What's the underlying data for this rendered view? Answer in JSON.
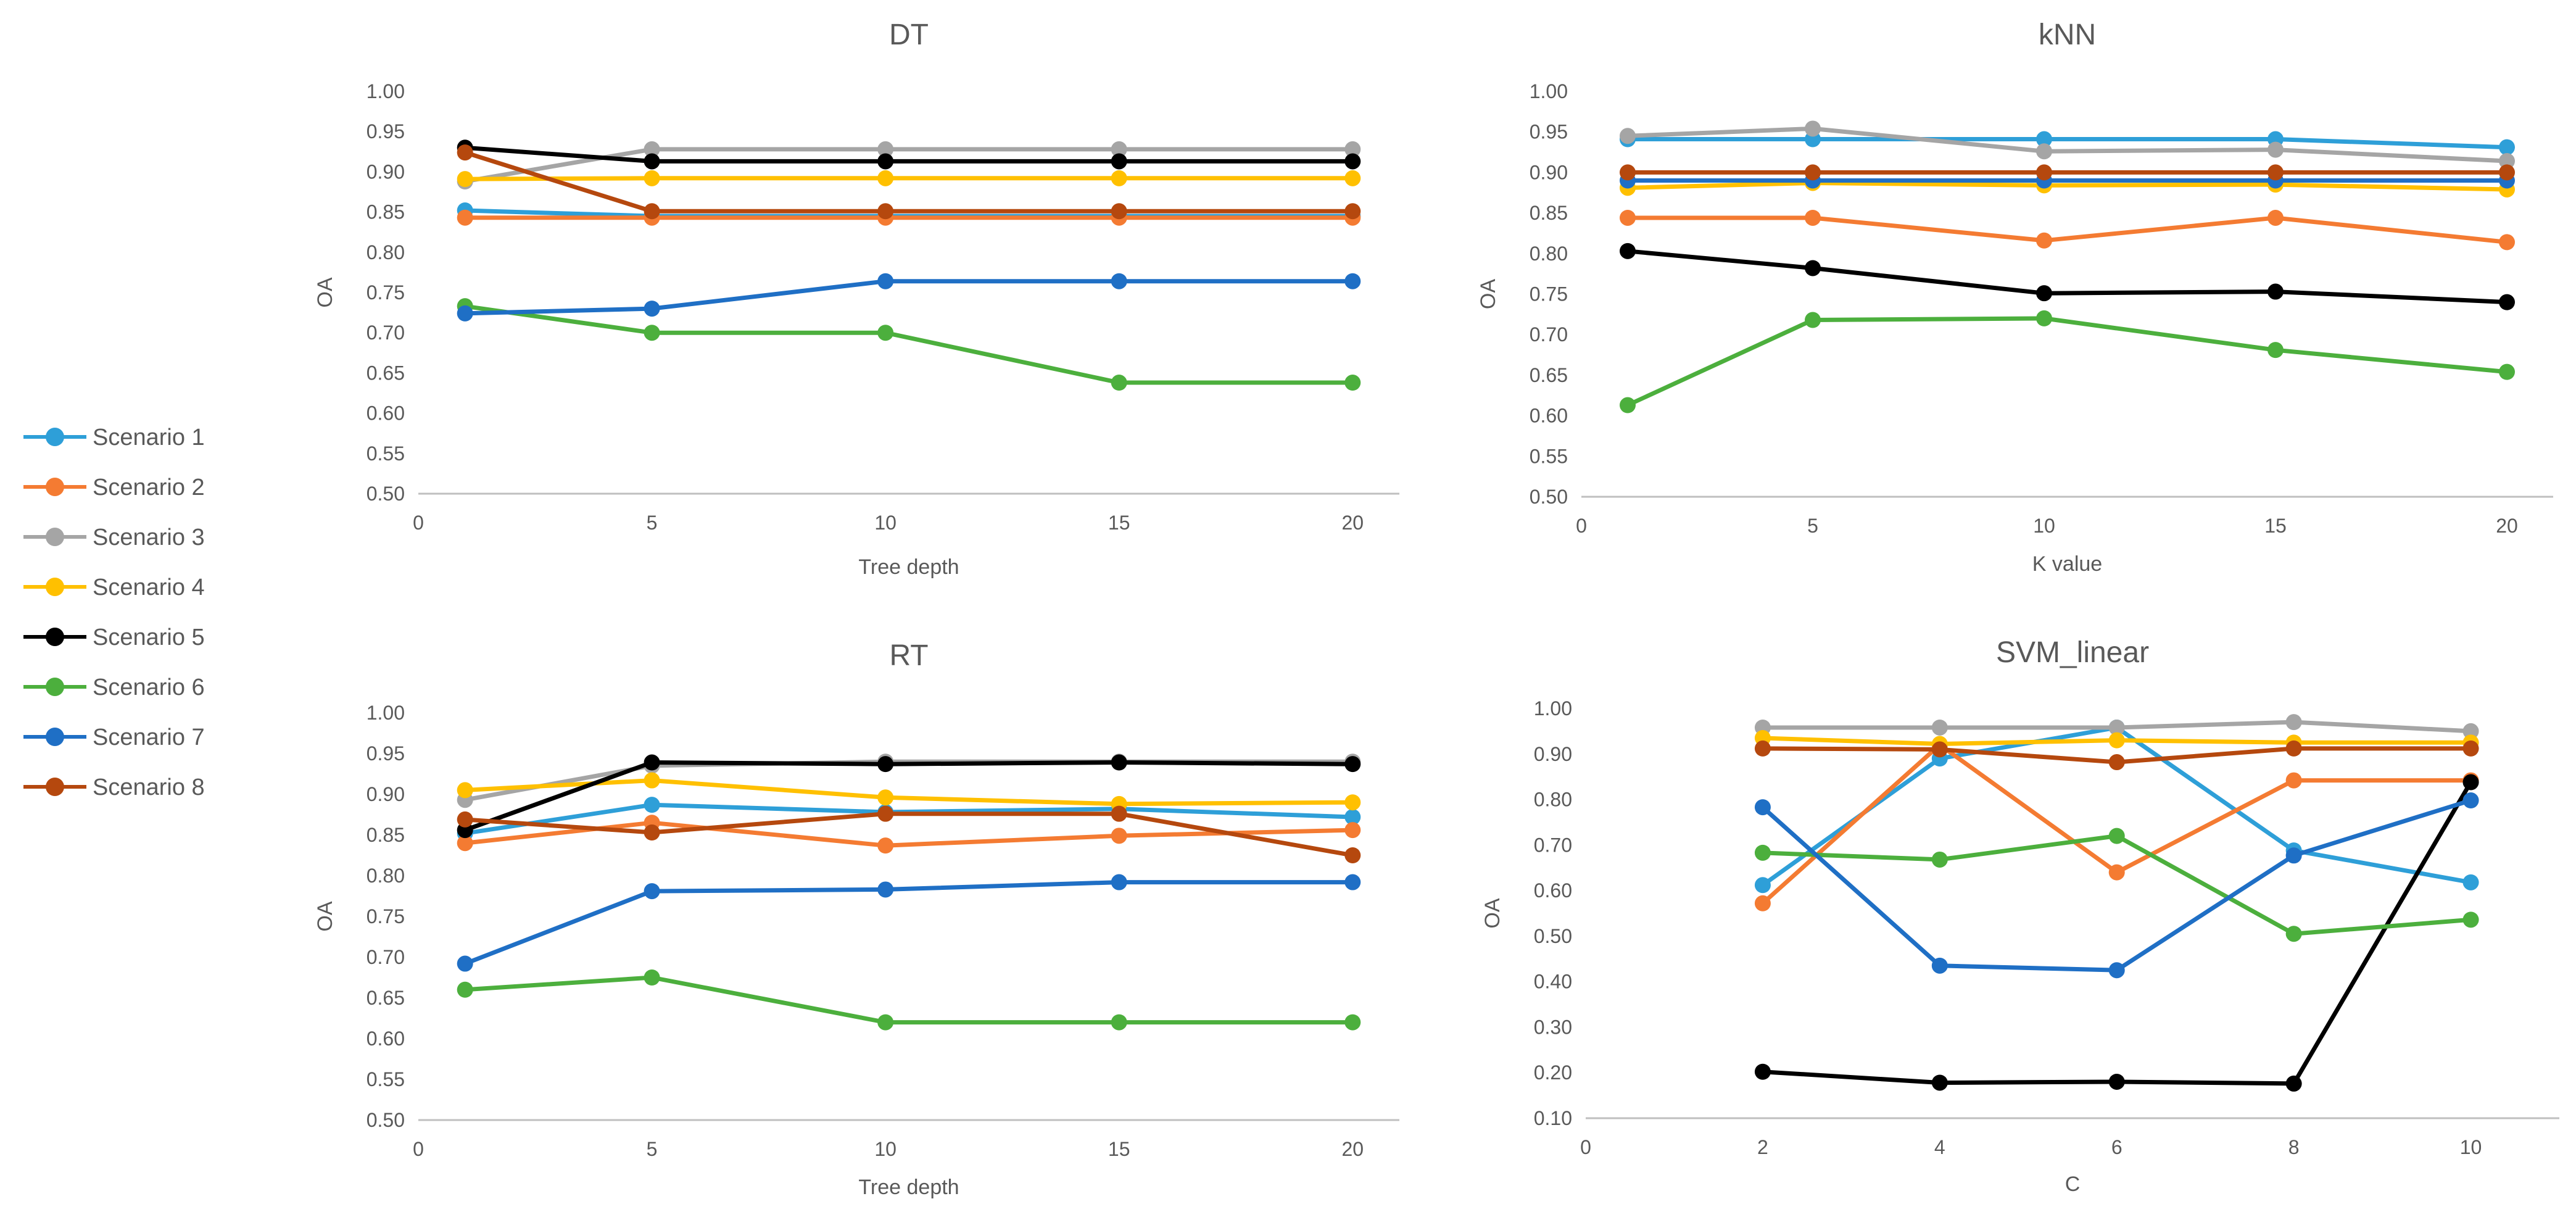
{
  "legend": [
    {
      "name": "Scenario 1",
      "color": "#2E9FD8"
    },
    {
      "name": "Scenario 2",
      "color": "#F47B32"
    },
    {
      "name": "Scenario 3",
      "color": "#A5A5A5"
    },
    {
      "name": "Scenario 4",
      "color": "#FFC000"
    },
    {
      "name": "Scenario 5",
      "color": "#000000"
    },
    {
      "name": "Scenario 6",
      "color": "#4CAF3D"
    },
    {
      "name": "Scenario 7",
      "color": "#1F6FC5"
    },
    {
      "name": "Scenario 8",
      "color": "#B5480E"
    }
  ],
  "chart_data": [
    {
      "id": "dt",
      "type": "line",
      "title": "DT",
      "xlabel": "Tree depth",
      "ylabel": "OA",
      "xlim": [
        0,
        21
      ],
      "ylim": [
        0.5,
        1.0
      ],
      "xticks": [
        0,
        5,
        10,
        15,
        20
      ],
      "yticks": [
        "0.50",
        "0.55",
        "0.60",
        "0.65",
        "0.70",
        "0.75",
        "0.80",
        "0.85",
        "0.90",
        "0.95",
        "1.00"
      ],
      "x": [
        1,
        5,
        10,
        15,
        20
      ],
      "series": [
        {
          "name": "Scenario 1",
          "values": [
            0.852,
            0.845,
            0.845,
            0.845,
            0.845
          ]
        },
        {
          "name": "Scenario 2",
          "values": [
            0.843,
            0.843,
            0.843,
            0.843,
            0.843
          ]
        },
        {
          "name": "Scenario 3",
          "values": [
            0.888,
            0.928,
            0.928,
            0.928,
            0.928
          ]
        },
        {
          "name": "Scenario 4",
          "values": [
            0.891,
            0.892,
            0.892,
            0.892,
            0.892
          ]
        },
        {
          "name": "Scenario 5",
          "values": [
            0.93,
            0.913,
            0.913,
            0.913,
            0.913
          ]
        },
        {
          "name": "Scenario 6",
          "values": [
            0.733,
            0.7,
            0.7,
            0.638,
            0.638
          ]
        },
        {
          "name": "Scenario 7",
          "values": [
            0.724,
            0.73,
            0.764,
            0.764,
            0.764
          ]
        },
        {
          "name": "Scenario 8",
          "values": [
            0.924,
            0.851,
            0.851,
            0.851,
            0.851
          ]
        }
      ]
    },
    {
      "id": "knn",
      "type": "line",
      "title": "kNN",
      "xlabel": "K value",
      "ylabel": "OA",
      "xlim": [
        0,
        21
      ],
      "ylim": [
        0.5,
        1.0
      ],
      "xticks": [
        0,
        5,
        10,
        15,
        20
      ],
      "yticks": [
        "0.50",
        "0.55",
        "0.60",
        "0.65",
        "0.70",
        "0.75",
        "0.80",
        "0.85",
        "0.90",
        "0.95",
        "1.00"
      ],
      "x": [
        1,
        5,
        10,
        15,
        20
      ],
      "series": [
        {
          "name": "Scenario 1",
          "values": [
            0.941,
            0.941,
            0.941,
            0.941,
            0.931
          ]
        },
        {
          "name": "Scenario 2",
          "values": [
            0.844,
            0.844,
            0.816,
            0.844,
            0.814
          ]
        },
        {
          "name": "Scenario 3",
          "values": [
            0.945,
            0.954,
            0.926,
            0.928,
            0.914
          ]
        },
        {
          "name": "Scenario 4",
          "values": [
            0.881,
            0.887,
            0.884,
            0.885,
            0.879
          ]
        },
        {
          "name": "Scenario 5",
          "values": [
            0.803,
            0.782,
            0.751,
            0.753,
            0.74
          ]
        },
        {
          "name": "Scenario 6",
          "values": [
            0.613,
            0.718,
            0.72,
            0.681,
            0.654
          ]
        },
        {
          "name": "Scenario 7",
          "values": [
            0.89,
            0.89,
            0.89,
            0.89,
            0.89
          ]
        },
        {
          "name": "Scenario 8",
          "values": [
            0.9,
            0.9,
            0.9,
            0.9,
            0.9
          ]
        }
      ]
    },
    {
      "id": "rt",
      "type": "line",
      "title": "RT",
      "xlabel": "Tree depth",
      "ylabel": "OA",
      "xlim": [
        0,
        21
      ],
      "ylim": [
        0.5,
        1.0
      ],
      "xticks": [
        0,
        5,
        10,
        15,
        20
      ],
      "yticks": [
        "0.50",
        "0.55",
        "0.60",
        "0.65",
        "0.70",
        "0.75",
        "0.80",
        "0.85",
        "0.90",
        "0.95",
        "1.00"
      ],
      "x": [
        1,
        5,
        10,
        15,
        20
      ],
      "series": [
        {
          "name": "Scenario 1",
          "values": [
            0.852,
            0.887,
            0.878,
            0.882,
            0.872
          ]
        },
        {
          "name": "Scenario 2",
          "values": [
            0.84,
            0.865,
            0.837,
            0.849,
            0.856
          ]
        },
        {
          "name": "Scenario 3",
          "values": [
            0.893,
            0.935,
            0.94,
            0.94,
            0.94
          ]
        },
        {
          "name": "Scenario 4",
          "values": [
            0.905,
            0.917,
            0.896,
            0.888,
            0.89
          ]
        },
        {
          "name": "Scenario 5",
          "values": [
            0.856,
            0.939,
            0.937,
            0.939,
            0.937
          ]
        },
        {
          "name": "Scenario 6",
          "values": [
            0.66,
            0.675,
            0.62,
            0.62,
            0.62
          ]
        },
        {
          "name": "Scenario 7",
          "values": [
            0.692,
            0.781,
            0.783,
            0.792,
            0.792
          ]
        },
        {
          "name": "Scenario 8",
          "values": [
            0.869,
            0.853,
            0.876,
            0.876,
            0.825
          ]
        }
      ]
    },
    {
      "id": "svm",
      "type": "line",
      "title": "SVM_linear",
      "xlabel": "C",
      "ylabel": "OA",
      "xlim": [
        0,
        11
      ],
      "ylim": [
        0.1,
        1.0
      ],
      "xticks": [
        0,
        2,
        4,
        6,
        8,
        10
      ],
      "yticks": [
        "0.10",
        "0.20",
        "0.30",
        "0.40",
        "0.50",
        "0.60",
        "0.70",
        "0.80",
        "0.90",
        "1.00"
      ],
      "x": [
        2,
        4,
        6,
        8,
        10
      ],
      "series": [
        {
          "name": "Scenario 1",
          "values": [
            0.612,
            0.89,
            0.958,
            0.688,
            0.618
          ]
        },
        {
          "name": "Scenario 2",
          "values": [
            0.572,
            0.92,
            0.64,
            0.842,
            0.842
          ]
        },
        {
          "name": "Scenario 3",
          "values": [
            0.958,
            0.958,
            0.958,
            0.97,
            0.95
          ]
        },
        {
          "name": "Scenario 4",
          "values": [
            0.935,
            0.922,
            0.93,
            0.925,
            0.925
          ]
        },
        {
          "name": "Scenario 5",
          "values": [
            0.202,
            0.178,
            0.18,
            0.176,
            0.838
          ]
        },
        {
          "name": "Scenario 6",
          "values": [
            0.683,
            0.668,
            0.72,
            0.505,
            0.536
          ]
        },
        {
          "name": "Scenario 7",
          "values": [
            0.783,
            0.435,
            0.425,
            0.677,
            0.798
          ]
        },
        {
          "name": "Scenario 8",
          "values": [
            0.912,
            0.91,
            0.882,
            0.912,
            0.912
          ]
        }
      ]
    }
  ]
}
